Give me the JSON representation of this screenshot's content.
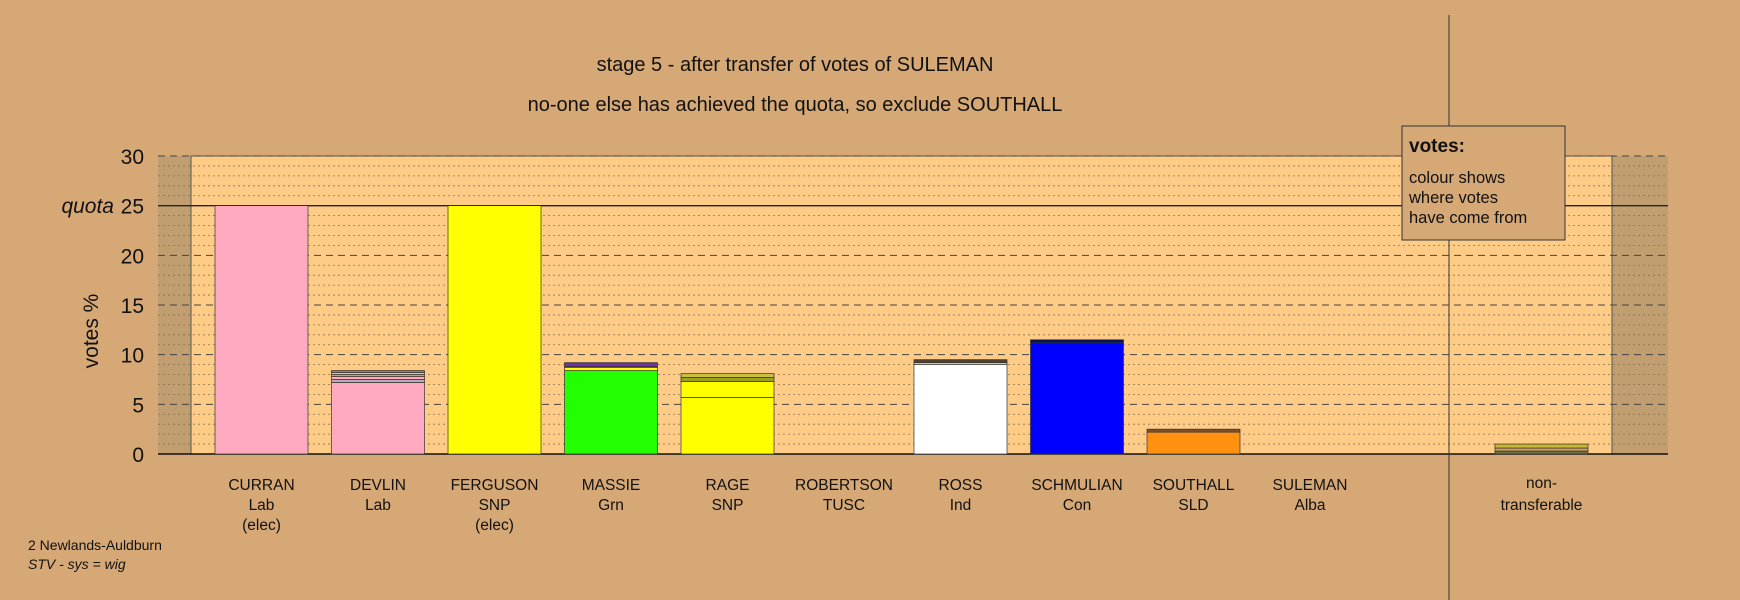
{
  "chart_data": {
    "type": "bar",
    "stacked": true,
    "title": "stage 5 - after transfer of votes of SULEMAN",
    "subtitle": "no-one else has achieved the quota, so exclude SOUTHALL",
    "ylabel": "votes %",
    "ylim": [
      0,
      30
    ],
    "yticks": [
      0,
      5,
      10,
      15,
      20,
      25,
      30
    ],
    "quota": 25,
    "quota_label": "quota",
    "grid": true,
    "categories": [
      {
        "name": "CURRAN",
        "party": "Lab",
        "status": "(elec)"
      },
      {
        "name": "DEVLIN",
        "party": "Lab",
        "status": ""
      },
      {
        "name": "FERGUSON",
        "party": "SNP",
        "status": "(elec)"
      },
      {
        "name": "MASSIE",
        "party": "Grn",
        "status": ""
      },
      {
        "name": "RAGE",
        "party": "SNP",
        "status": ""
      },
      {
        "name": "ROBERTSON",
        "party": "TUSC",
        "status": ""
      },
      {
        "name": "ROSS",
        "party": "Ind",
        "status": ""
      },
      {
        "name": "SCHMULIAN",
        "party": "Con",
        "status": ""
      },
      {
        "name": "SOUTHALL",
        "party": "SLD",
        "status": ""
      },
      {
        "name": "SULEMAN",
        "party": "Alba",
        "status": ""
      }
    ],
    "nontransferable": {
      "label1": "non-",
      "label2": "transferable"
    },
    "bars": [
      {
        "segments": [
          {
            "value": 25.0,
            "color": "#ffaac0"
          }
        ]
      },
      {
        "segments": [
          {
            "value": 7.2,
            "color": "#ffaac0"
          },
          {
            "value": 0.3,
            "color": "#bfa8b8"
          },
          {
            "value": 0.3,
            "color": "#ffaac0"
          },
          {
            "value": 0.2,
            "color": "#e0a040"
          },
          {
            "value": 0.2,
            "color": "#d8c8a0"
          },
          {
            "value": 0.2,
            "color": "#a08060"
          }
        ]
      },
      {
        "segments": [
          {
            "value": 25.0,
            "color": "#ffff00"
          }
        ]
      },
      {
        "segments": [
          {
            "value": 8.4,
            "color": "#22ff00"
          },
          {
            "value": 0.3,
            "color": "#ffff00"
          },
          {
            "value": 0.1,
            "color": "#ffaac0"
          },
          {
            "value": 0.4,
            "color": "#7030a0"
          }
        ]
      },
      {
        "segments": [
          {
            "value": 5.7,
            "color": "#ffff00"
          },
          {
            "value": 1.6,
            "color": "#ffff00"
          },
          {
            "value": 0.4,
            "color": "#a0a020"
          },
          {
            "value": 0.4,
            "color": "#c8c040"
          }
        ]
      },
      {
        "segments": []
      },
      {
        "segments": [
          {
            "value": 9.0,
            "color": "#ffffff"
          },
          {
            "value": 0.2,
            "color": "#d8c8a0"
          },
          {
            "value": 0.3,
            "color": "#504030"
          }
        ]
      },
      {
        "segments": [
          {
            "value": 11.2,
            "color": "#0000ff"
          },
          {
            "value": 0.3,
            "color": "#001060"
          }
        ]
      },
      {
        "segments": [
          {
            "value": 2.2,
            "color": "#ff9010"
          },
          {
            "value": 0.3,
            "color": "#805030"
          }
        ]
      },
      {
        "segments": []
      }
    ],
    "nontransferable_segments": [
      {
        "value": 0.3,
        "color": "#707040"
      },
      {
        "value": 0.3,
        "color": "#d0a050"
      },
      {
        "value": 0.4,
        "color": "#c8b830"
      }
    ],
    "colors": {
      "background": "#d5a876",
      "plot_background": "#ffcc88",
      "side_shade": "#c09e70"
    }
  },
  "legend": {
    "title": "votes:",
    "lines": [
      "colour shows",
      "where votes",
      "have come from"
    ]
  },
  "footer": {
    "ward": "2 Newlands-Auldburn",
    "system": "STV - sys = wig"
  }
}
